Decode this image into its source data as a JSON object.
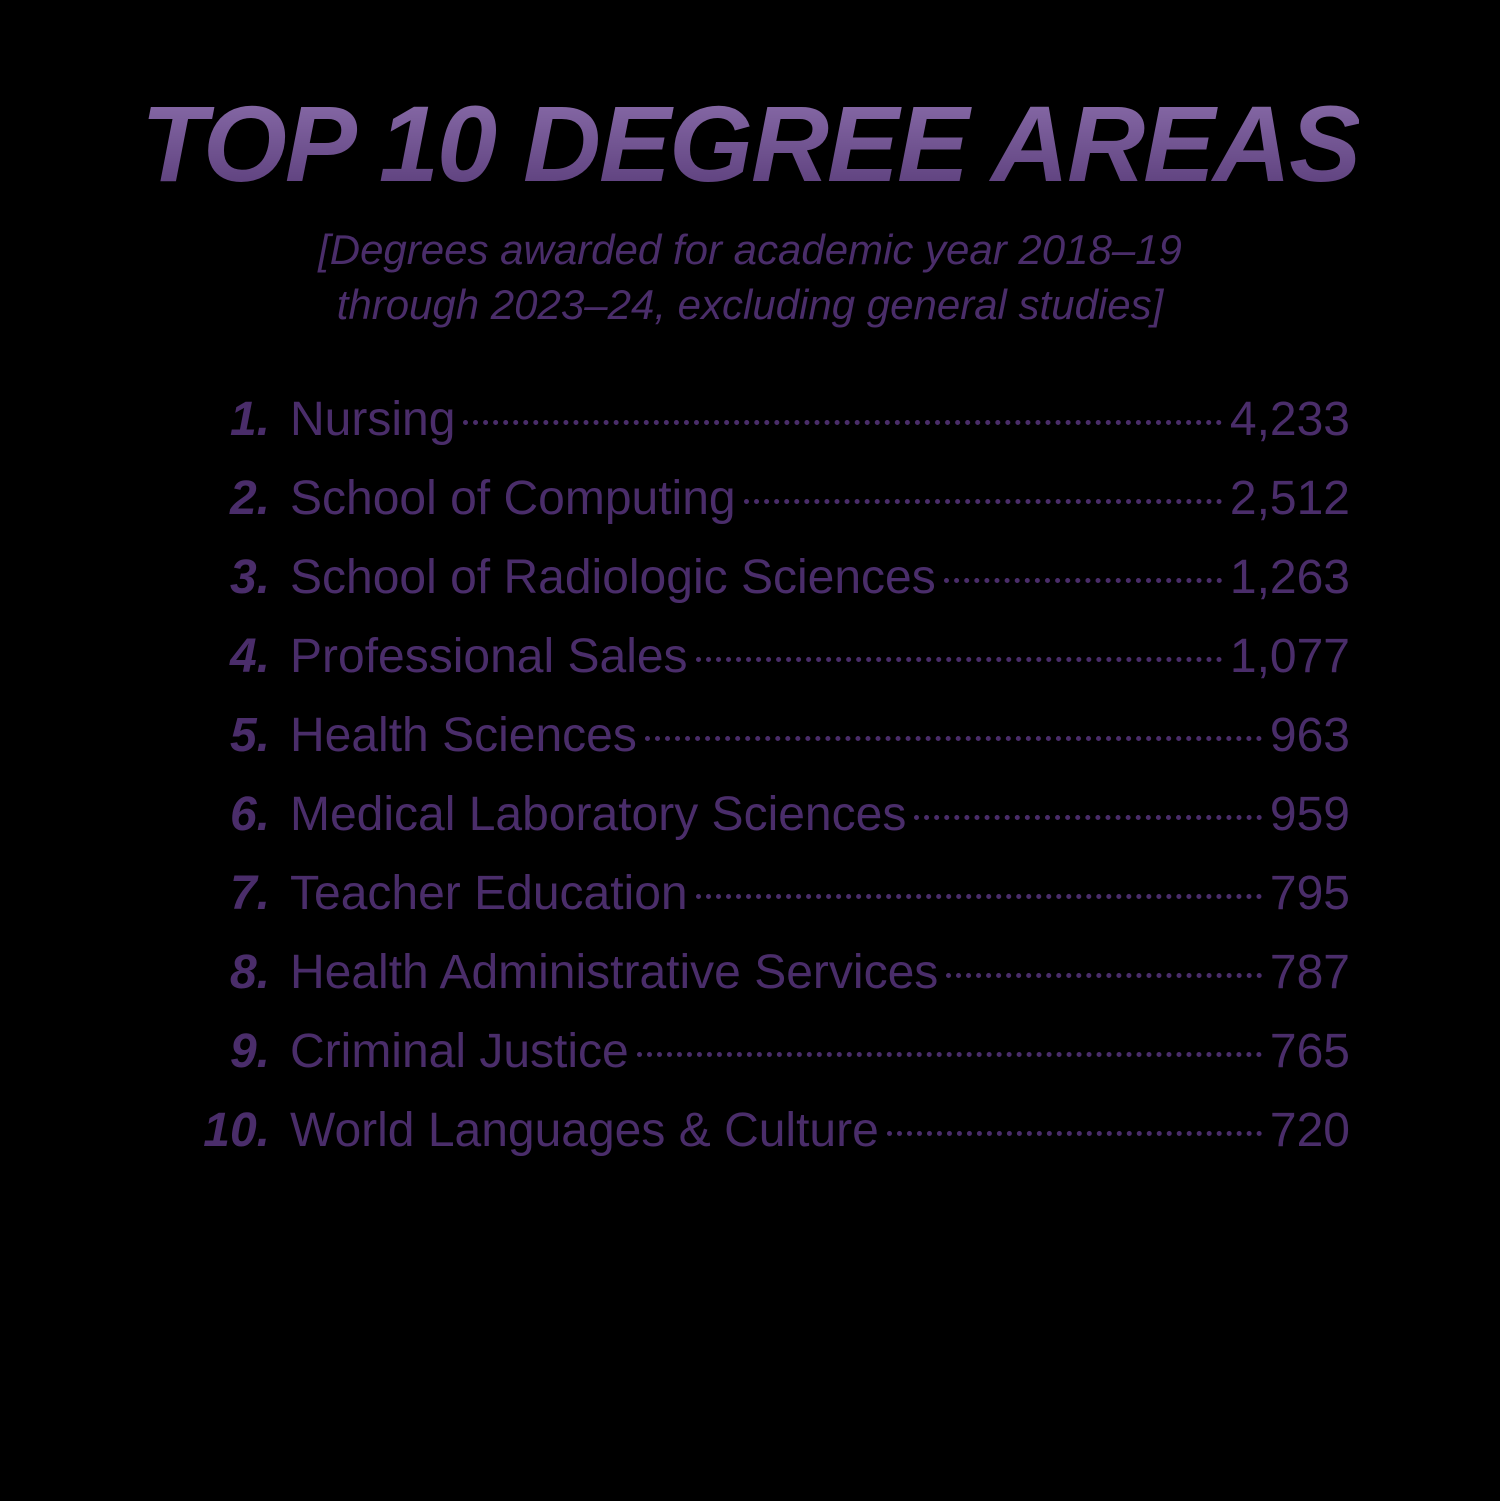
{
  "title": "TOP 10 DEGREE AREAS",
  "subtitle_line1": "[Degrees awarded for academic year 2018–19",
  "subtitle_line2": "through 2023–24, excluding general studies]",
  "colors": {
    "background": "#000000",
    "title_gradient_top": "#8a6daa",
    "title_gradient_bottom": "#5a3d7a",
    "text_color": "#4a2d6a"
  },
  "typography": {
    "title_fontsize": 108,
    "title_weight": 900,
    "title_style": "italic",
    "subtitle_fontsize": 42,
    "subtitle_style": "italic",
    "list_fontsize": 48,
    "rank_weight": 900,
    "rank_style": "italic",
    "label_weight": 500
  },
  "items": [
    {
      "rank": "1.",
      "label": "Nursing",
      "value": "4,233"
    },
    {
      "rank": "2.",
      "label": "School of Computing",
      "value": "2,512"
    },
    {
      "rank": "3.",
      "label": "School of Radiologic Sciences",
      "value": "1,263"
    },
    {
      "rank": "4.",
      "label": "Professional Sales",
      "value": "1,077"
    },
    {
      "rank": "5.",
      "label": "Health Sciences",
      "value": "963"
    },
    {
      "rank": "6.",
      "label": "Medical Laboratory Sciences",
      "value": "959"
    },
    {
      "rank": "7.",
      "label": "Teacher Education",
      "value": "795"
    },
    {
      "rank": "8.",
      "label": "Health Administrative Services",
      "value": "787"
    },
    {
      "rank": "9.",
      "label": "Criminal Justice",
      "value": "765"
    },
    {
      "rank": "10.",
      "label": "World Languages & Culture",
      "value": "720"
    }
  ]
}
